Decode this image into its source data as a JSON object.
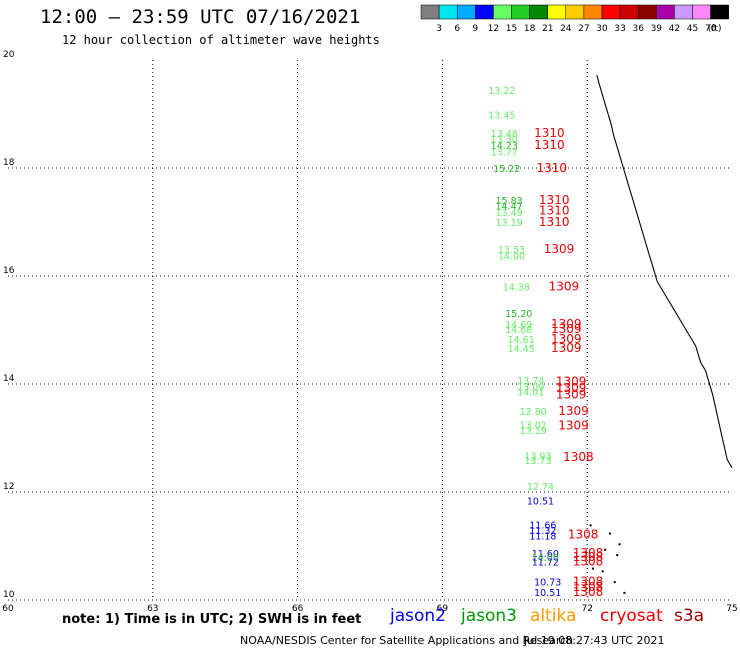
{
  "header": {
    "title": "12:00 – 23:59 UTC 07/16/2021",
    "subtitle": "12 hour collection of altimeter wave heights"
  },
  "legend": {
    "unit": "(ft)",
    "bins": [
      {
        "label": "3",
        "color": "#808080"
      },
      {
        "label": "6",
        "color": "#00e5ee"
      },
      {
        "label": "9",
        "color": "#00aaff"
      },
      {
        "label": "12",
        "color": "#0000ff"
      },
      {
        "label": "15",
        "color": "#66ff66"
      },
      {
        "label": "18",
        "color": "#22cc22"
      },
      {
        "label": "21",
        "color": "#008800"
      },
      {
        "label": "24",
        "color": "#ffff00"
      },
      {
        "label": "27",
        "color": "#ffcc00"
      },
      {
        "label": "30",
        "color": "#ff8800"
      },
      {
        "label": "33",
        "color": "#ff0000"
      },
      {
        "label": "36",
        "color": "#cc0000"
      },
      {
        "label": "39",
        "color": "#880000"
      },
      {
        "label": "42",
        "color": "#aa00aa"
      },
      {
        "label": "45",
        "color": "#cc99ff"
      },
      {
        "label": "70",
        "color": "#ff88ff"
      },
      {
        "label": "",
        "color": "#000000"
      }
    ]
  },
  "map": {
    "lon_ticks": [
      "60",
      "63",
      "66",
      "69",
      "72",
      "75"
    ],
    "lat_ticks": [
      "20",
      "18",
      "16",
      "14",
      "12",
      "10"
    ],
    "lon_range": [
      60,
      75
    ],
    "lat_range": [
      10,
      20
    ]
  },
  "observations": [
    {
      "value": "13.22",
      "lon": 69.95,
      "lat": 19.37,
      "color": "#66ee66"
    },
    {
      "value": "13.45",
      "lon": 69.95,
      "lat": 18.92,
      "color": "#66ee66"
    },
    {
      "value": "13.48",
      "lon": 70.0,
      "lat": 18.57,
      "color": "#66ee66"
    },
    {
      "value": "13.30",
      "lon": 70.0,
      "lat": 18.47,
      "color": "#66ee66"
    },
    {
      "value": "14.23",
      "lon": 70.0,
      "lat": 18.35,
      "color": "#22bb22"
    },
    {
      "value": "13.77",
      "lon": 70.0,
      "lat": 18.23,
      "color": "#66ee66"
    },
    {
      "value": "15.22",
      "lon": 70.05,
      "lat": 17.93,
      "color": "#22bb22"
    },
    {
      "value": "15.83",
      "lon": 70.1,
      "lat": 17.33,
      "color": "#22bb22"
    },
    {
      "value": "14.47",
      "lon": 70.1,
      "lat": 17.23,
      "color": "#22bb22"
    },
    {
      "value": "13.49",
      "lon": 70.1,
      "lat": 17.11,
      "color": "#66ee66"
    },
    {
      "value": "13.19",
      "lon": 70.1,
      "lat": 16.93,
      "color": "#66ee66"
    },
    {
      "value": "13.53",
      "lon": 70.15,
      "lat": 16.43,
      "color": "#66ee66"
    },
    {
      "value": "14.00",
      "lon": 70.15,
      "lat": 16.31,
      "color": "#66ee66"
    },
    {
      "value": "14.38",
      "lon": 70.25,
      "lat": 15.73,
      "color": "#66ee66"
    },
    {
      "value": "15.20",
      "lon": 70.3,
      "lat": 15.24,
      "color": "#22bb22"
    },
    {
      "value": "14.69",
      "lon": 70.3,
      "lat": 15.04,
      "color": "#66ee66"
    },
    {
      "value": "14.68",
      "lon": 70.3,
      "lat": 14.94,
      "color": "#66ee66"
    },
    {
      "value": "14.61",
      "lon": 70.35,
      "lat": 14.76,
      "color": "#66ee66"
    },
    {
      "value": "14.45",
      "lon": 70.35,
      "lat": 14.59,
      "color": "#66ee66"
    },
    {
      "value": "13.74",
      "lon": 70.55,
      "lat": 14.0,
      "color": "#66ee66"
    },
    {
      "value": "13.09",
      "lon": 70.55,
      "lat": 13.88,
      "color": "#66ee66"
    },
    {
      "value": "14.01",
      "lon": 70.55,
      "lat": 13.79,
      "color": "#66ee66"
    },
    {
      "value": "12.80",
      "lon": 70.6,
      "lat": 13.43,
      "color": "#66ee66"
    },
    {
      "value": "13.02",
      "lon": 70.6,
      "lat": 13.18,
      "color": "#66ee66"
    },
    {
      "value": "13.19",
      "lon": 70.6,
      "lat": 13.07,
      "color": "#66ee66"
    },
    {
      "value": "13.93",
      "lon": 70.7,
      "lat": 12.6,
      "color": "#66ee66"
    },
    {
      "value": "13.73",
      "lon": 70.7,
      "lat": 12.52,
      "color": "#66ee66"
    },
    {
      "value": "12.74",
      "lon": 70.75,
      "lat": 12.04,
      "color": "#66ee66"
    },
    {
      "value": "10.51",
      "lon": 70.75,
      "lat": 11.77,
      "color": "#0000ee"
    },
    {
      "value": "11.66",
      "lon": 70.8,
      "lat": 11.32,
      "color": "#0000ee"
    },
    {
      "value": "11.32",
      "lon": 70.8,
      "lat": 11.22,
      "color": "#0000ee"
    },
    {
      "value": "11.18",
      "lon": 70.8,
      "lat": 11.12,
      "color": "#0000ee"
    },
    {
      "value": "11.60",
      "lon": 70.85,
      "lat": 10.8,
      "color": "#0000ee"
    },
    {
      "value": "14.00",
      "lon": 70.85,
      "lat": 10.72,
      "color": "#22bb22"
    },
    {
      "value": "11.72",
      "lon": 70.85,
      "lat": 10.64,
      "color": "#0000ee"
    },
    {
      "value": "10.73",
      "lon": 70.9,
      "lat": 10.27,
      "color": "#0000ee"
    },
    {
      "value": "10.51",
      "lon": 70.9,
      "lat": 10.07,
      "color": "#0000ee"
    }
  ],
  "tracks": [
    {
      "value": "1310",
      "lon": 70.9,
      "lat": 18.57,
      "color": "#ee0000"
    },
    {
      "value": "1310",
      "lon": 70.9,
      "lat": 18.35,
      "color": "#ee0000"
    },
    {
      "value": "1310",
      "lon": 70.95,
      "lat": 17.93,
      "color": "#ee0000"
    },
    {
      "value": "1310",
      "lon": 71.0,
      "lat": 17.33,
      "color": "#ee0000"
    },
    {
      "value": "1310",
      "lon": 71.0,
      "lat": 17.14,
      "color": "#ee0000"
    },
    {
      "value": "1310",
      "lon": 71.0,
      "lat": 16.93,
      "color": "#ee0000"
    },
    {
      "value": "1309",
      "lon": 71.1,
      "lat": 16.43,
      "color": "#ee0000"
    },
    {
      "value": "1309",
      "lon": 71.2,
      "lat": 15.73,
      "color": "#ee0000"
    },
    {
      "value": "1309",
      "lon": 71.25,
      "lat": 15.04,
      "color": "#ee0000"
    },
    {
      "value": "1309",
      "lon": 71.25,
      "lat": 14.94,
      "color": "#ee0000"
    },
    {
      "value": "1309",
      "lon": 71.25,
      "lat": 14.76,
      "color": "#ee0000"
    },
    {
      "value": "1309",
      "lon": 71.25,
      "lat": 14.59,
      "color": "#ee0000"
    },
    {
      "value": "1309",
      "lon": 71.35,
      "lat": 13.97,
      "color": "#ee0000"
    },
    {
      "value": "1309",
      "lon": 71.35,
      "lat": 13.85,
      "color": "#ee0000"
    },
    {
      "value": "1309",
      "lon": 71.35,
      "lat": 13.73,
      "color": "#ee0000"
    },
    {
      "value": "1309",
      "lon": 71.4,
      "lat": 13.43,
      "color": "#ee0000"
    },
    {
      "value": "1309",
      "lon": 71.4,
      "lat": 13.16,
      "color": "#ee0000"
    },
    {
      "value": "1308",
      "lon": 71.5,
      "lat": 12.57,
      "color": "#ee0000"
    },
    {
      "value": "1308",
      "lon": 71.6,
      "lat": 11.14,
      "color": "#ee0000"
    },
    {
      "value": "1308",
      "lon": 71.7,
      "lat": 10.8,
      "color": "#ee0000"
    },
    {
      "value": "1308",
      "lon": 71.7,
      "lat": 10.72,
      "color": "#ee0000"
    },
    {
      "value": "1308",
      "lon": 71.7,
      "lat": 10.64,
      "color": "#ee0000"
    },
    {
      "value": "1308",
      "lon": 71.7,
      "lat": 10.27,
      "color": "#ee0000"
    },
    {
      "value": "1308",
      "lon": 71.7,
      "lat": 10.17,
      "color": "#ee0000"
    },
    {
      "value": "1308",
      "lon": 71.7,
      "lat": 10.07,
      "color": "#ee0000"
    }
  ],
  "coastline": [
    [
      72.2,
      19.72
    ],
    [
      72.25,
      19.55
    ],
    [
      72.3,
      19.4
    ],
    [
      72.35,
      19.25
    ],
    [
      72.4,
      19.1
    ],
    [
      72.45,
      18.95
    ],
    [
      72.5,
      18.8
    ],
    [
      72.55,
      18.6
    ],
    [
      72.6,
      18.45
    ],
    [
      72.65,
      18.3
    ],
    [
      72.7,
      18.15
    ],
    [
      72.75,
      18.0
    ],
    [
      72.8,
      17.85
    ],
    [
      72.85,
      17.7
    ],
    [
      72.9,
      17.55
    ],
    [
      72.95,
      17.4
    ],
    [
      73.0,
      17.25
    ],
    [
      73.05,
      17.1
    ],
    [
      73.1,
      16.95
    ],
    [
      73.15,
      16.8
    ],
    [
      73.2,
      16.65
    ],
    [
      73.25,
      16.5
    ],
    [
      73.3,
      16.35
    ],
    [
      73.35,
      16.2
    ],
    [
      73.4,
      16.05
    ],
    [
      73.45,
      15.9
    ],
    [
      73.55,
      15.75
    ],
    [
      73.65,
      15.6
    ],
    [
      73.75,
      15.45
    ],
    [
      73.85,
      15.3
    ],
    [
      73.95,
      15.15
    ],
    [
      74.05,
      15.0
    ],
    [
      74.15,
      14.85
    ],
    [
      74.25,
      14.7
    ],
    [
      74.3,
      14.55
    ],
    [
      74.35,
      14.4
    ],
    [
      74.45,
      14.25
    ],
    [
      74.5,
      14.1
    ],
    [
      74.55,
      13.95
    ],
    [
      74.6,
      13.8
    ],
    [
      74.65,
      13.6
    ],
    [
      74.7,
      13.4
    ],
    [
      74.75,
      13.2
    ],
    [
      74.8,
      13.0
    ],
    [
      74.85,
      12.8
    ],
    [
      74.9,
      12.6
    ],
    [
      75.0,
      12.45
    ]
  ],
  "islands": [
    [
      72.05,
      11.4
    ],
    [
      72.35,
      10.95
    ],
    [
      72.6,
      10.85
    ],
    [
      72.1,
      10.6
    ],
    [
      72.55,
      10.35
    ],
    [
      72.75,
      10.15
    ],
    [
      72.45,
      11.25
    ],
    [
      72.65,
      11.05
    ],
    [
      71.95,
      10.9
    ],
    [
      72.3,
      10.55
    ],
    [
      72.2,
      10.2
    ]
  ],
  "notes": {
    "note": "note:  1) Time is in UTC;  2) SWH is in feet",
    "sats": [
      {
        "name": "jason2",
        "color": "#0000ee"
      },
      {
        "name": "jason3",
        "color": "#009900"
      },
      {
        "name": "altika",
        "color": "#ff9900"
      },
      {
        "name": "cryosat",
        "color": "#ee0000"
      },
      {
        "name": "s3a",
        "color": "#990000"
      }
    ],
    "credit": "NOAA/NESDIS Center for Satellite Applications and Research",
    "timestamp": "Jul 19 08:27:43 UTC 2021"
  }
}
